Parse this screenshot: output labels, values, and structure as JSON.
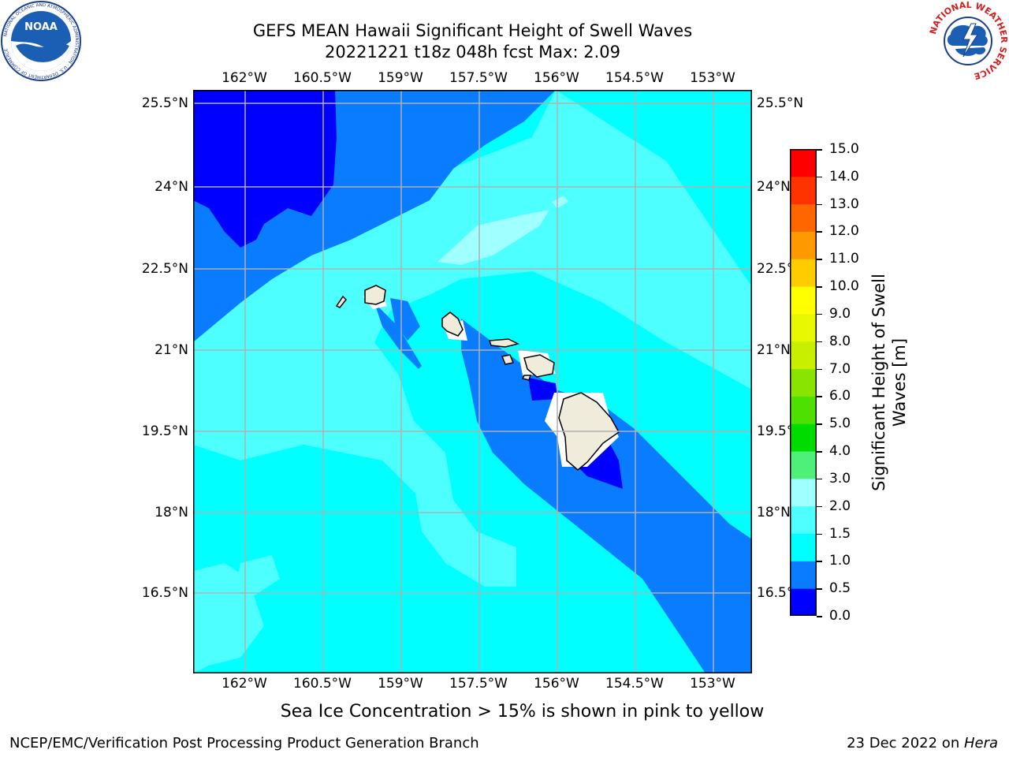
{
  "title_line1": "GEFS MEAN Hawaii Significant Height of Swell Waves",
  "title_line2": "20221221 t18z 048h fcst   Max: 2.09",
  "lon_ticks": [
    "162°W",
    "160.5°W",
    "159°W",
    "157.5°W",
    "156°W",
    "154.5°W",
    "153°W"
  ],
  "lat_ticks": [
    "25.5°N",
    "24°N",
    "22.5°N",
    "21°N",
    "19.5°N",
    "18°N",
    "16.5°N"
  ],
  "colorbar": {
    "title": "Significant Height of Swell Waves [m]",
    "labels": [
      "15.0",
      "14.0",
      "13.0",
      "12.0",
      "11.0",
      "10.0",
      "9.0",
      "8.0",
      "7.0",
      "6.0",
      "5.0",
      "4.0",
      "3.0",
      "2.0",
      "1.5",
      "1.0",
      "0.5",
      "0.0"
    ],
    "colors_bottom_to_top": [
      "#0000ff",
      "#0a7cff",
      "#00ffff",
      "#4dffff",
      "#a0ffff",
      "#4ff07a",
      "#00dc00",
      "#4ee000",
      "#88e400",
      "#c8ee00",
      "#e8f800",
      "#ffff00",
      "#ffcc00",
      "#ff9900",
      "#ff6600",
      "#ff3300",
      "#ff0000"
    ]
  },
  "note": "Sea Ice Concentration > 15% is shown in pink to yellow",
  "footer_left": "NCEP/EMC/Verification Post Processing Product Generation Branch",
  "footer_right_date": "23 Dec 2022 on ",
  "footer_right_machine": "Hera",
  "logo_left_text": "NOAA",
  "logo_left_ring_text": "NATIONAL OCEANIC AND ATMOSPHERIC ADMINISTRATION · U.S. DEPARTMENT OF COMMERCE",
  "logo_right_ring_text": "NATIONAL WEATHER SERVICE",
  "map_colors": {
    "dark_blue": "#0000ff",
    "mid_blue": "#0a7cff",
    "cyan": "#00ffff",
    "light_cyan": "#4dffff",
    "pale_cyan": "#a0ffff",
    "land": "#efecdc",
    "grid": "#b0b0b0"
  }
}
